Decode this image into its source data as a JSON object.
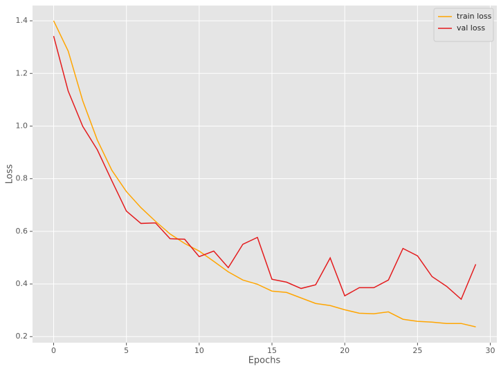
{
  "chart_data": {
    "type": "line",
    "x": [
      0,
      1,
      2,
      3,
      4,
      5,
      6,
      7,
      8,
      9,
      10,
      11,
      12,
      13,
      14,
      15,
      16,
      17,
      18,
      19,
      20,
      21,
      22,
      23,
      24,
      25,
      26,
      27,
      28,
      29
    ],
    "series": [
      {
        "name": "train loss",
        "color": "#ffa500",
        "values": [
          1.4,
          1.285,
          1.096,
          0.947,
          0.832,
          0.751,
          0.69,
          0.638,
          0.59,
          0.554,
          0.525,
          0.486,
          0.446,
          0.415,
          0.399,
          0.373,
          0.368,
          0.347,
          0.326,
          0.318,
          0.302,
          0.289,
          0.287,
          0.294,
          0.266,
          0.258,
          0.255,
          0.25,
          0.25,
          0.237
        ]
      },
      {
        "name": "val loss",
        "color": "#e41a1c",
        "values": [
          1.342,
          1.133,
          0.999,
          0.91,
          0.792,
          0.677,
          0.63,
          0.632,
          0.572,
          0.57,
          0.504,
          0.525,
          0.462,
          0.551,
          0.577,
          0.418,
          0.407,
          0.383,
          0.397,
          0.499,
          0.355,
          0.386,
          0.386,
          0.415,
          0.535,
          0.507,
          0.428,
          0.391,
          0.342,
          0.475
        ]
      }
    ],
    "x_label": "Epochs",
    "y_label": "Loss",
    "xlim": [
      -1.45,
      30.45
    ],
    "xticks": [
      0,
      5,
      10,
      15,
      20,
      25,
      30
    ],
    "ylim": [
      0.177,
      1.458
    ],
    "yticks": [
      0.2,
      0.4,
      0.6,
      0.8,
      {
        "value": 1,
        "label": "1.0"
      },
      1.2,
      1.4
    ],
    "grid": true,
    "legend": "upper right"
  }
}
